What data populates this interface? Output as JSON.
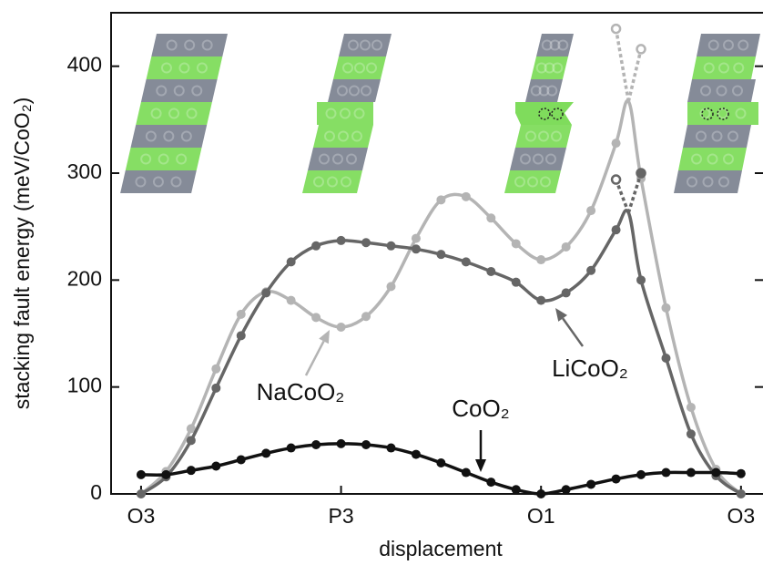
{
  "chart_data": {
    "type": "line",
    "x_label": "displacement",
    "y_label": "stacking fault energy (meV/CoO₂)",
    "xlim": [
      -0.15,
      3.11
    ],
    "ylim": [
      0,
      450
    ],
    "xticks": [
      {
        "value": 0,
        "label": "O3"
      },
      {
        "value": 1,
        "label": "P3"
      },
      {
        "value": 2,
        "label": "O1"
      },
      {
        "value": 3,
        "label": "O3"
      }
    ],
    "yticks": [
      0,
      100,
      200,
      300,
      400
    ],
    "series": [
      {
        "name": "NaCoO₂",
        "color": "#b4b4b4",
        "x": [
          0,
          0.125,
          0.25,
          0.375,
          0.5,
          0.625,
          0.75,
          0.875,
          1,
          1.125,
          1.25,
          1.375,
          1.5,
          1.625,
          1.75,
          1.875,
          2,
          2.125,
          2.25,
          2.375,
          2.4375,
          2.5,
          2.625,
          2.75,
          2.875,
          3
        ],
        "values": [
          0,
          21,
          61,
          117,
          168,
          189,
          181,
          165,
          156,
          166,
          194,
          239,
          275,
          278,
          258,
          234,
          219,
          231,
          265,
          328,
          367,
          295,
          174,
          81,
          23,
          0
        ],
        "branches": [
          {
            "x": [
              2.4375,
              2.375
            ],
            "values": [
              367,
              435
            ]
          },
          {
            "x": [
              2.4375,
              2.5
            ],
            "values": [
              367,
              416
            ]
          }
        ]
      },
      {
        "name": "LiCoO₂",
        "color": "#666666",
        "x": [
          0,
          0.125,
          0.25,
          0.375,
          0.5,
          0.625,
          0.75,
          0.875,
          1,
          1.125,
          1.25,
          1.375,
          1.5,
          1.625,
          1.75,
          1.875,
          2,
          2.125,
          2.25,
          2.375,
          2.4375,
          2.5,
          2.625,
          2.75,
          2.875,
          3
        ],
        "values": [
          0,
          16,
          50,
          99,
          148,
          188,
          217,
          232,
          237,
          235,
          232,
          229,
          224,
          217,
          208,
          198,
          181,
          188,
          209,
          247,
          263,
          200,
          127,
          56,
          17,
          0
        ],
        "branches": [
          {
            "x": [
              2.4375,
              2.375
            ],
            "values": [
              263,
              294
            ]
          },
          {
            "x": [
              2.4375,
              2.5
            ],
            "values": [
              263,
              300
            ]
          }
        ]
      },
      {
        "name": "CoO₂",
        "color": "#111111",
        "x": [
          0,
          0.125,
          0.25,
          0.375,
          0.5,
          0.625,
          0.75,
          0.875,
          1,
          1.125,
          1.25,
          1.375,
          1.5,
          1.625,
          1.75,
          1.875,
          2,
          2.125,
          2.25,
          2.375,
          2.5,
          2.625,
          2.75,
          2.875,
          3
        ],
        "values": [
          18,
          18,
          22,
          26,
          32,
          38,
          43,
          46,
          47,
          46,
          43,
          37,
          29,
          20,
          11,
          4,
          0,
          4,
          9,
          14,
          18,
          20,
          20,
          20,
          19
        ]
      }
    ]
  }
}
